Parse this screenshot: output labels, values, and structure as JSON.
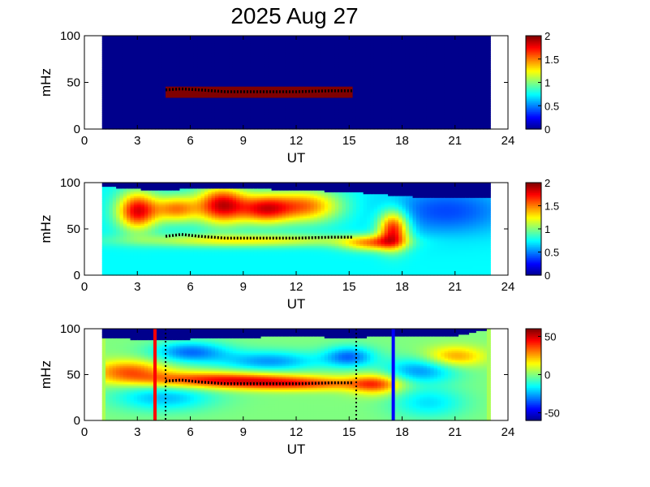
{
  "figure": {
    "title": "2025 Aug 27"
  },
  "chart_data": [
    {
      "type": "heatmap",
      "panel": 1,
      "xlabel": "UT",
      "ylabel": "mHz",
      "xlim": [
        0,
        24
      ],
      "ylim": [
        0,
        100
      ],
      "x_ticks": [
        "0",
        "3",
        "6",
        "9",
        "12",
        "15",
        "18",
        "21",
        "24"
      ],
      "y_ticks": [
        "0",
        "50",
        "100"
      ],
      "data_extent_x": [
        1,
        23
      ],
      "colorbar": {
        "range": [
          0,
          2
        ],
        "ticks": [
          "0",
          "0.5",
          "1",
          "1.5",
          "2"
        ]
      },
      "colormap": "jet",
      "background_level": 0,
      "features": [
        {
          "shape": "band",
          "x_range": [
            4.6,
            15.2
          ],
          "y_center": 40,
          "y_halfwidth": 5,
          "level": 2
        }
      ],
      "track": {
        "color": "#000000",
        "x": [
          4.6,
          5.5,
          6.5,
          8,
          10,
          12,
          14,
          15.2
        ],
        "y": [
          42,
          43,
          42,
          40,
          40,
          40,
          41,
          41
        ]
      }
    },
    {
      "type": "heatmap",
      "panel": 2,
      "xlabel": "UT",
      "ylabel": "mHz",
      "xlim": [
        0,
        24
      ],
      "ylim": [
        0,
        100
      ],
      "x_ticks": [
        "0",
        "3",
        "6",
        "9",
        "12",
        "15",
        "18",
        "21",
        "24"
      ],
      "y_ticks": [
        "0",
        "50",
        "100"
      ],
      "data_extent_x": [
        1,
        23
      ],
      "colorbar": {
        "range": [
          0,
          2
        ],
        "ticks": [
          "0",
          "0.5",
          "1",
          "1.5",
          "2"
        ]
      },
      "colormap": "jet",
      "background_level": 0.75,
      "features": [
        {
          "shape": "blob",
          "x": 3,
          "y": 70,
          "sx": 0.8,
          "sy": 14,
          "level": 1.9
        },
        {
          "shape": "blob",
          "x": 5.2,
          "y": 72,
          "sx": 0.9,
          "sy": 10,
          "level": 1.55
        },
        {
          "shape": "blob",
          "x": 7.8,
          "y": 76,
          "sx": 1.0,
          "sy": 14,
          "level": 1.95
        },
        {
          "shape": "blob",
          "x": 10.2,
          "y": 72,
          "sx": 1.0,
          "sy": 11,
          "level": 1.7
        },
        {
          "shape": "blob",
          "x": 12.5,
          "y": 75,
          "sx": 1.4,
          "sy": 12,
          "level": 1.6
        },
        {
          "shape": "blob",
          "x": 17.5,
          "y": 50,
          "sx": 0.6,
          "sy": 14,
          "level": 1.9
        },
        {
          "shape": "blob",
          "x": 16.3,
          "y": 35,
          "sx": 1.2,
          "sy": 6,
          "level": 1.45
        },
        {
          "shape": "blob",
          "x": 9,
          "y": 38,
          "sx": 4.5,
          "sy": 5,
          "level": 1.3
        },
        {
          "shape": "blob",
          "x": 20.5,
          "y": 70,
          "sx": 2.5,
          "sy": 18,
          "level": 0.35
        }
      ],
      "masked_top": [
        {
          "x": 1,
          "y": 96
        },
        {
          "x": 4,
          "y": 92
        },
        {
          "x": 8,
          "y": 95
        },
        {
          "x": 12,
          "y": 92
        },
        {
          "x": 15,
          "y": 90
        },
        {
          "x": 18,
          "y": 86
        },
        {
          "x": 20,
          "y": 83
        },
        {
          "x": 23,
          "y": 84
        }
      ],
      "track": {
        "color": "#000000",
        "x": [
          4.6,
          5.5,
          6.5,
          8,
          10,
          12,
          14,
          15.2
        ],
        "y": [
          42,
          44,
          42,
          40,
          40,
          40,
          41,
          41
        ]
      }
    },
    {
      "type": "heatmap",
      "panel": 3,
      "xlabel": "UT",
      "ylabel": "mHz",
      "xlim": [
        0,
        24
      ],
      "ylim": [
        0,
        100
      ],
      "x_ticks": [
        "0",
        "3",
        "6",
        "9",
        "12",
        "15",
        "18",
        "21",
        "24"
      ],
      "y_ticks": [
        "0",
        "50",
        "100"
      ],
      "data_extent_x": [
        1,
        23
      ],
      "colorbar": {
        "range": [
          -60,
          60
        ],
        "ticks": [
          "-50",
          "0",
          "50"
        ]
      },
      "colormap": "jet",
      "background_level": 0,
      "features": [
        {
          "shape": "blob",
          "x": 7.5,
          "y": 45,
          "sx": 3.5,
          "sy": 6,
          "level": 45
        },
        {
          "shape": "blob",
          "x": 12,
          "y": 40,
          "sx": 3.0,
          "sy": 5,
          "level": 35
        },
        {
          "shape": "blob",
          "x": 2.5,
          "y": 55,
          "sx": 1.5,
          "sy": 8,
          "level": 35
        },
        {
          "shape": "blob",
          "x": 16.5,
          "y": 40,
          "sx": 1.0,
          "sy": 8,
          "level": 35
        },
        {
          "shape": "blob",
          "x": 21,
          "y": 70,
          "sx": 1.2,
          "sy": 8,
          "level": 30
        },
        {
          "shape": "blob",
          "x": 6,
          "y": 75,
          "sx": 1.5,
          "sy": 8,
          "level": -35
        },
        {
          "shape": "blob",
          "x": 10.5,
          "y": 65,
          "sx": 2.0,
          "sy": 8,
          "level": -30
        },
        {
          "shape": "blob",
          "x": 15,
          "y": 70,
          "sx": 1.0,
          "sy": 8,
          "level": -35
        },
        {
          "shape": "blob",
          "x": 19,
          "y": 55,
          "sx": 1.5,
          "sy": 10,
          "level": -30
        },
        {
          "shape": "blob",
          "x": 4.5,
          "y": 25,
          "sx": 2.0,
          "sy": 10,
          "level": -25
        },
        {
          "shape": "blob",
          "x": 19.5,
          "y": 20,
          "sx": 1.5,
          "sy": 12,
          "level": -20
        }
      ],
      "masked_top": [
        {
          "x": 1,
          "y": 90
        },
        {
          "x": 4,
          "y": 88
        },
        {
          "x": 8,
          "y": 90
        },
        {
          "x": 12,
          "y": 92
        },
        {
          "x": 15,
          "y": 90
        },
        {
          "x": 18,
          "y": 93
        },
        {
          "x": 21,
          "y": 92
        },
        {
          "x": 23,
          "y": 100
        }
      ],
      "edge_level": 5,
      "vertical_lines": [
        {
          "x": 4.0,
          "color": "#ff0000",
          "style": "solid"
        },
        {
          "x": 4.6,
          "color": "#000000",
          "style": "dotted"
        },
        {
          "x": 15.4,
          "color": "#000000",
          "style": "dotted"
        },
        {
          "x": 17.5,
          "color": "#0000ff",
          "style": "solid"
        }
      ],
      "track": {
        "color": "#000000",
        "x": [
          4.6,
          5.5,
          6.5,
          8,
          10,
          12,
          14,
          15.2
        ],
        "y": [
          43,
          44,
          42,
          40,
          40,
          40,
          41,
          41
        ]
      }
    }
  ]
}
